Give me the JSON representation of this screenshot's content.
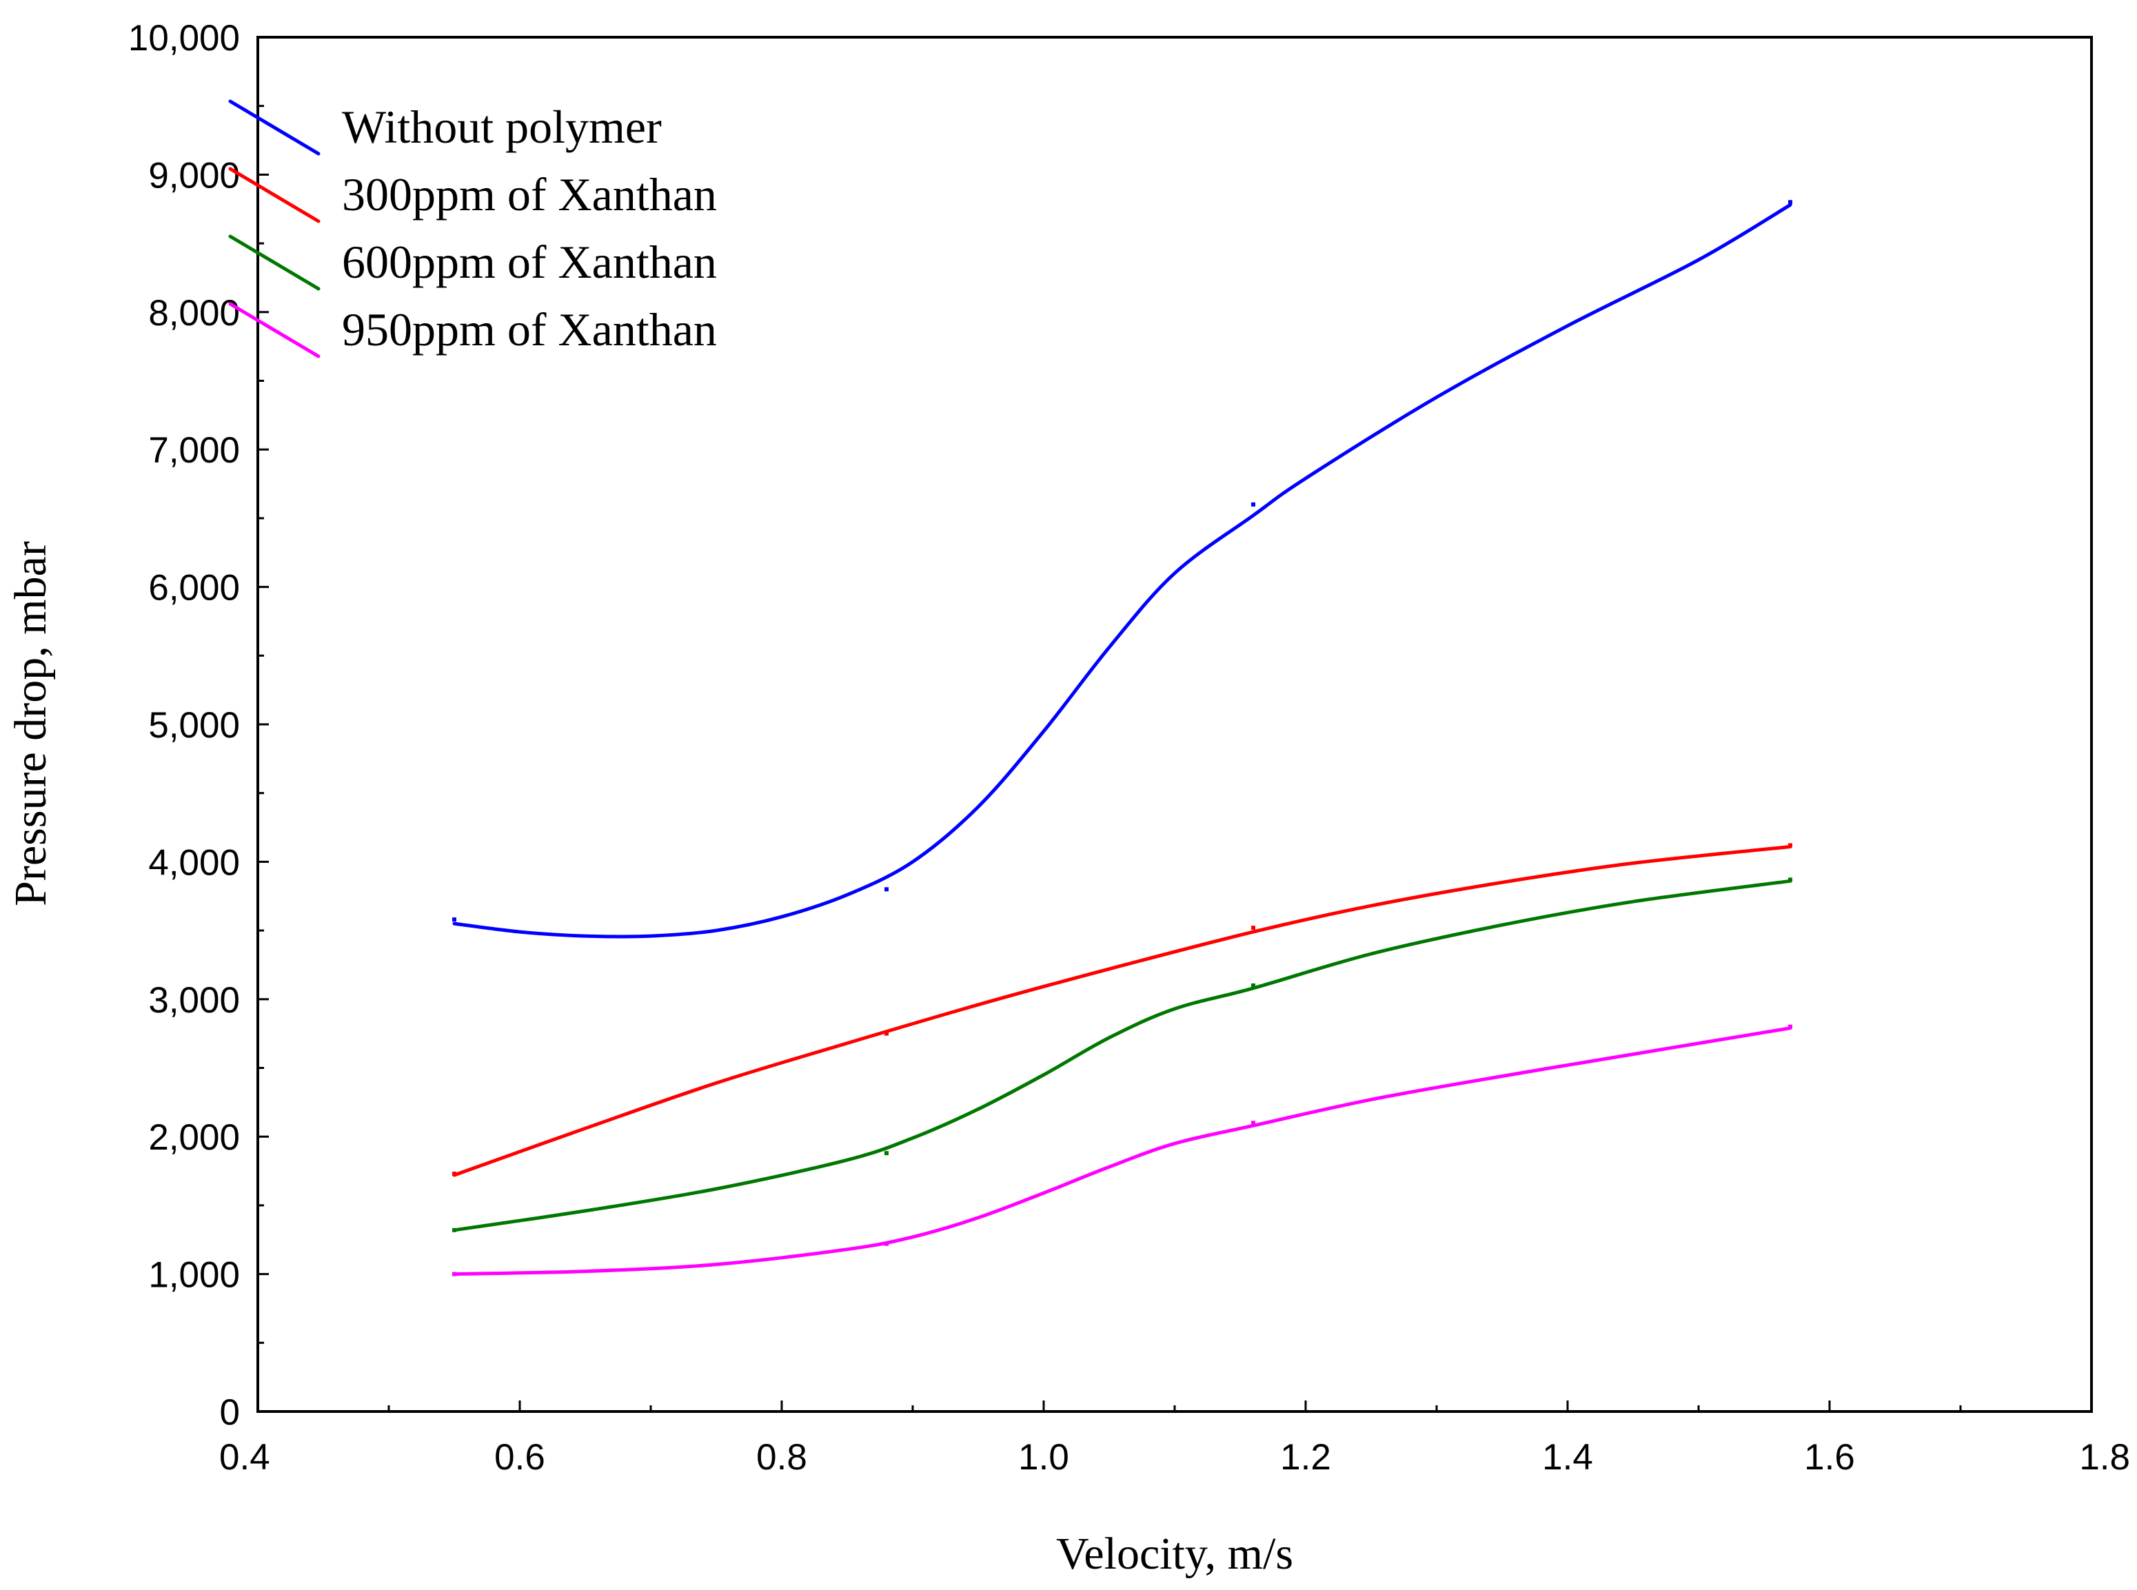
{
  "chart_data": {
    "type": "line",
    "title": "",
    "xlabel": "Velocity, m/s",
    "ylabel": "Pressure drop, mbar",
    "xlim": [
      0.4,
      1.8
    ],
    "ylim": [
      0,
      10000
    ],
    "x_ticks": [
      0.4,
      0.6,
      0.8,
      1.0,
      1.2,
      1.4,
      1.6,
      1.8
    ],
    "x_tick_labels": [
      "0.4",
      "0.6",
      "0.8",
      "1.0",
      "1.2",
      "1.4",
      "1.6",
      "1.8"
    ],
    "y_ticks": [
      0,
      1000,
      2000,
      3000,
      4000,
      5000,
      6000,
      7000,
      8000,
      9000,
      10000
    ],
    "y_tick_labels": [
      "0",
      "1,000",
      "2,000",
      "3,000",
      "4,000",
      "5,000",
      "6,000",
      "7,000",
      "8,000",
      "9,000",
      "10,000"
    ],
    "grid": false,
    "legend_position": "top-left",
    "x": [
      0.55,
      0.88,
      1.16,
      1.57
    ],
    "series": [
      {
        "name": "Without polymer",
        "color": "#0000ff",
        "points": [
          [
            0.55,
            3580
          ],
          [
            0.88,
            3800
          ],
          [
            1.16,
            6600
          ],
          [
            1.57,
            8800
          ]
        ],
        "curve": [
          [
            0.55,
            3550
          ],
          [
            0.6,
            3490
          ],
          [
            0.65,
            3460
          ],
          [
            0.7,
            3460
          ],
          [
            0.75,
            3500
          ],
          [
            0.8,
            3600
          ],
          [
            0.85,
            3760
          ],
          [
            0.9,
            4000
          ],
          [
            0.95,
            4400
          ],
          [
            1.0,
            4950
          ],
          [
            1.05,
            5560
          ],
          [
            1.1,
            6100
          ],
          [
            1.16,
            6520
          ],
          [
            1.2,
            6790
          ],
          [
            1.3,
            7380
          ],
          [
            1.4,
            7900
          ],
          [
            1.5,
            8380
          ],
          [
            1.57,
            8780
          ]
        ]
      },
      {
        "name": "300ppm of Xanthan",
        "color": "#ff0000",
        "points": [
          [
            0.55,
            1730
          ],
          [
            0.88,
            2750
          ],
          [
            1.16,
            3520
          ],
          [
            1.57,
            4120
          ]
        ],
        "curve": [
          [
            0.55,
            1720
          ],
          [
            0.65,
            2060
          ],
          [
            0.75,
            2390
          ],
          [
            0.85,
            2680
          ],
          [
            0.95,
            2960
          ],
          [
            1.05,
            3220
          ],
          [
            1.16,
            3490
          ],
          [
            1.25,
            3680
          ],
          [
            1.35,
            3850
          ],
          [
            1.45,
            3990
          ],
          [
            1.57,
            4110
          ]
        ]
      },
      {
        "name": "600ppm of Xanthan",
        "color": "#007700",
        "points": [
          [
            0.55,
            1320
          ],
          [
            0.88,
            1880
          ],
          [
            1.16,
            3100
          ],
          [
            1.57,
            3870
          ]
        ],
        "curve": [
          [
            0.55,
            1320
          ],
          [
            0.65,
            1460
          ],
          [
            0.75,
            1620
          ],
          [
            0.85,
            1830
          ],
          [
            0.9,
            1990
          ],
          [
            0.95,
            2200
          ],
          [
            1.0,
            2450
          ],
          [
            1.05,
            2720
          ],
          [
            1.1,
            2930
          ],
          [
            1.16,
            3080
          ],
          [
            1.25,
            3330
          ],
          [
            1.35,
            3540
          ],
          [
            1.45,
            3710
          ],
          [
            1.57,
            3860
          ]
        ]
      },
      {
        "name": "950ppm of Xanthan",
        "color": "#ff00ff",
        "points": [
          [
            0.55,
            1000
          ],
          [
            0.88,
            1220
          ],
          [
            1.16,
            2100
          ],
          [
            1.57,
            2800
          ]
        ],
        "curve": [
          [
            0.55,
            1000
          ],
          [
            0.65,
            1020
          ],
          [
            0.75,
            1070
          ],
          [
            0.85,
            1180
          ],
          [
            0.9,
            1270
          ],
          [
            0.95,
            1410
          ],
          [
            1.0,
            1590
          ],
          [
            1.05,
            1780
          ],
          [
            1.1,
            1950
          ],
          [
            1.16,
            2080
          ],
          [
            1.25,
            2270
          ],
          [
            1.35,
            2440
          ],
          [
            1.45,
            2600
          ],
          [
            1.57,
            2790
          ]
        ]
      }
    ]
  }
}
